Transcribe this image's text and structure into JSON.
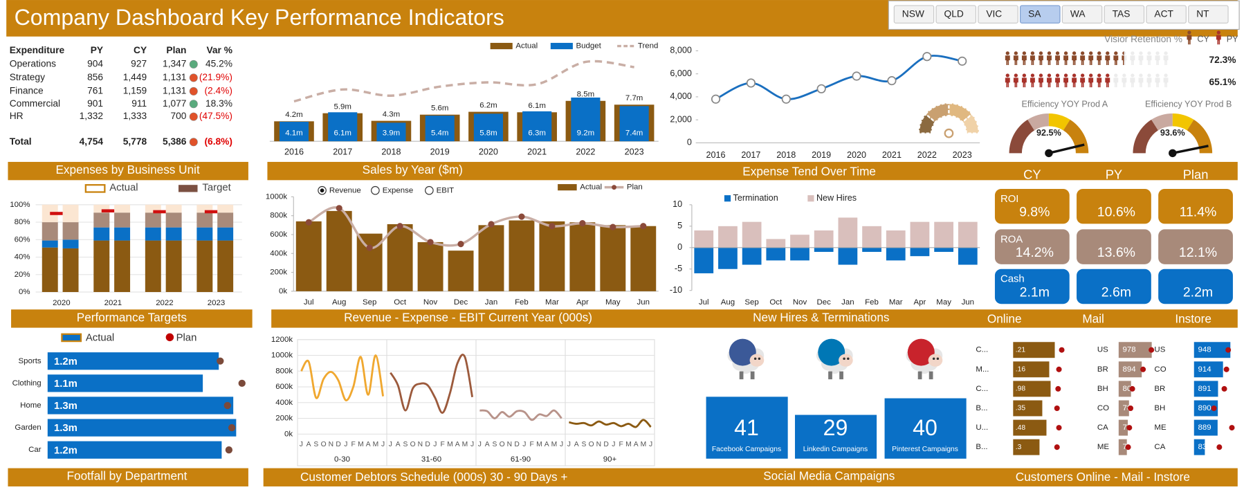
{
  "header": {
    "title": "Company Dashboard Key Performance Indicators",
    "filters": [
      "NSW",
      "QLD",
      "VIC",
      "SA",
      "WA",
      "TAS",
      "ACT",
      "NT"
    ],
    "selected_filter": 3
  },
  "expenditure": {
    "columns": [
      "Expenditure",
      "PY",
      "CY",
      "Plan",
      "Var %"
    ],
    "rows": [
      [
        "Operations",
        "904",
        "927",
        "1,347",
        "45.2%"
      ],
      [
        "Strategy",
        "856",
        "1,449",
        "1,131",
        "(21.9%)"
      ],
      [
        "Finance",
        "761",
        "1,159",
        "1,131",
        "(2.4%)"
      ],
      [
        "Commercial",
        "901",
        "911",
        "1,077",
        "18.3%"
      ],
      [
        "HR",
        "1,332",
        "1,333",
        "700",
        "(47.5%)"
      ],
      [
        "Total",
        "4,754",
        "5,778",
        "5,386",
        "(6.8%)"
      ]
    ],
    "status_colors": [
      "#5aaa7d",
      "#e0522a",
      "#e0522a",
      "#5aaa7d",
      "#e0522a",
      "#e0522a"
    ],
    "negative_color": "#e00000"
  },
  "section_titles": [
    "Expenses by Business Unit",
    "Sales by Year ($m)",
    "Expense Tend Over Time",
    "Performance Targets",
    "Revenue - Expense - EBIT Current Year (000s)",
    "New Hires & Terminations",
    "Footfall by Department",
    "Customer Debtors Schedule (000s)  30 - 90 Days +",
    "Social  Media Campaigns",
    "Customers Online - Mail - Instore"
  ],
  "retention": {
    "title": "Visior Retention %",
    "lim": [
      0,
      100
    ],
    "series": [
      {
        "name": "CY",
        "value": 72.3,
        "value_label": "72.3%",
        "color": "#8b4a2b"
      },
      {
        "name": "PY",
        "value": 65.1,
        "value_label": "65.1%",
        "color": "#a8322a"
      }
    ]
  },
  "gauges": [
    {
      "title": "Efficiency YOY Prod A",
      "value": 92.5,
      "value_label": "92.5%",
      "lim": [
        0,
        100
      ]
    },
    {
      "title": "Efficiency YOY Prod B",
      "value": 93.6,
      "value_label": "93.6%",
      "lim": [
        0,
        100
      ]
    }
  ],
  "kpi": {
    "columns": [
      "CY",
      "PY",
      "Plan"
    ],
    "rows": [
      {
        "label": "ROI",
        "values": [
          "9.8%",
          "10.6%",
          "11.4%"
        ],
        "color": "#c8820e"
      },
      {
        "label": "ROA",
        "values": [
          "14.2%",
          "13.6%",
          "12.1%"
        ],
        "color": "#a88a7a"
      },
      {
        "label": "Cash",
        "values": [
          "2.1m",
          "2.6m",
          "2.2m"
        ],
        "color": "#0a70c6"
      }
    ]
  },
  "chart_data": [
    {
      "type": "bar_combo",
      "categories": [
        "2016",
        "2017",
        "2018",
        "2019",
        "2020",
        "2021",
        "2022",
        "2023"
      ],
      "series": [
        {
          "name": "Actual",
          "style": "bar",
          "color": "#8b5a12",
          "values": [
            4.2,
            5.9,
            4.3,
            5.6,
            6.2,
            6.1,
            8.5,
            7.7
          ],
          "value_labels": [
            "4.2m",
            "5.9m",
            "4.3m",
            "5.6m",
            "6.2m",
            "6.1m",
            "8.5m",
            "7.7m"
          ]
        },
        {
          "name": "Budget",
          "style": "bar",
          "color": "#0a70c6",
          "values": [
            4.1,
            6.1,
            3.9,
            5.4,
            5.8,
            6.3,
            9.2,
            7.4
          ],
          "value_labels": [
            "4.1m",
            "6.1m",
            "3.9m",
            "5.4m",
            "5.8m",
            "6.3m",
            "9.2m",
            "7.4m"
          ]
        },
        {
          "name": "Trend",
          "style": "line",
          "color": "#c9aea5",
          "values": [
            8.4,
            10.9,
            9.6,
            11.5,
            12.4,
            12.0,
            16.7,
            15.6
          ]
        }
      ]
    },
    {
      "type": "line",
      "categories": [
        "2016",
        "2017",
        "2018",
        "2019",
        "2020",
        "2021",
        "2022",
        "2023"
      ],
      "values": [
        3800,
        5200,
        3800,
        4700,
        5800,
        5400,
        7500,
        7100
      ],
      "color": "#1a6fbf",
      "ylim": [
        0,
        8000
      ],
      "yticks": [
        0,
        {
          "value": 2000,
          "label": "2,000"
        },
        {
          "value": 4000,
          "label": "4,000"
        },
        {
          "value": 6000,
          "label": "6,000"
        },
        {
          "value": 8000,
          "label": "8,000"
        }
      ]
    },
    {
      "type": "stacked_pct",
      "categories": [
        "2020",
        "2021",
        "2022",
        "2023"
      ],
      "series": [
        {
          "name": "Actual",
          "color": "#ffffff",
          "values": [
            [
              51,
              8,
              21,
              20
            ],
            [
              59,
              15,
              17,
              9
            ],
            [
              59,
              15,
              17,
              9
            ],
            [
              59,
              15,
              17,
              9
            ]
          ]
        },
        {
          "name": "Target",
          "color": "#7b5042",
          "values": [
            [
              50,
              10,
              20,
              20
            ],
            [
              59,
              15,
              17,
              9
            ],
            [
              59,
              15,
              17,
              9
            ],
            [
              59,
              15,
              17,
              9
            ]
          ]
        }
      ],
      "segment_colors": [
        "#8b5a12",
        "#0a70c6",
        "#a88a7a",
        "#fbe6d2"
      ],
      "markers": [
        90,
        93,
        92,
        92
      ],
      "marker_color": "#d01010",
      "ylim": [
        0,
        100
      ],
      "yticks": [
        {
          "value": 0,
          "label": "0%"
        },
        {
          "value": 20,
          "label": "20%"
        },
        {
          "value": 40,
          "label": "40%"
        },
        {
          "value": 60,
          "label": "60%"
        },
        {
          "value": 80,
          "label": "80%"
        },
        {
          "value": 100,
          "label": "100%"
        }
      ]
    },
    {
      "type": "bar_line",
      "options": [
        "Revenue",
        "Expense",
        "EBIT"
      ],
      "selected_option": 0,
      "categories": [
        "Jul",
        "Aug",
        "Sep",
        "Oct",
        "Nov",
        "Dec",
        "Jan",
        "Feb",
        "Mar",
        "Apr",
        "May",
        "Jun"
      ],
      "series": [
        {
          "name": "Actual",
          "style": "bar",
          "color": "#8b5a12",
          "values": [
            740000,
            850000,
            610000,
            710000,
            520000,
            430000,
            700000,
            750000,
            740000,
            730000,
            700000,
            690000
          ]
        },
        {
          "name": "Plan",
          "style": "line",
          "color": "#c9aea5",
          "marker_color": "#8b4a3a",
          "values": [
            730000,
            880000,
            460000,
            690000,
            520000,
            500000,
            710000,
            790000,
            690000,
            720000,
            680000,
            690000
          ]
        }
      ],
      "ylim": [
        0,
        1000000
      ],
      "yticks": [
        {
          "value": 0,
          "label": "0k"
        },
        {
          "value": 200000,
          "label": "200k"
        },
        {
          "value": 400000,
          "label": "400k"
        },
        {
          "value": 600000,
          "label": "600k"
        },
        {
          "value": 800000,
          "label": "800k"
        },
        {
          "value": 1000000,
          "label": "1000k"
        }
      ]
    },
    {
      "type": "diverging_bar",
      "categories": [
        "Jul",
        "Aug",
        "Sep",
        "Oct",
        "Nov",
        "Dec",
        "Jan",
        "Feb",
        "Mar",
        "Apr",
        "May",
        "Jun"
      ],
      "series": [
        {
          "name": "Termination",
          "color": "#0a70c6",
          "values": [
            -6,
            -5,
            -4,
            -3,
            -3,
            -1,
            -4,
            -1,
            -3,
            -2,
            -1,
            -4
          ]
        },
        {
          "name": "New Hires",
          "color": "#d9bfbc",
          "values": [
            4,
            5,
            6,
            2,
            3,
            4,
            7,
            5,
            4,
            6,
            6,
            6
          ]
        }
      ],
      "ylim": [
        -10,
        10
      ],
      "yticks": [
        -10,
        -5,
        0,
        5,
        10
      ]
    },
    {
      "type": "hbar",
      "categories": [
        "Sports",
        "Clothing",
        "Home",
        "Garden",
        "Car"
      ],
      "series": [
        {
          "name": "Actual",
          "color": "#0a70c6",
          "values": [
            1.18,
            1.07,
            1.28,
            1.3,
            1.2
          ],
          "value_labels": [
            "1.2m",
            "1.1m",
            "1.3m",
            "1.3m",
            "1.2m"
          ]
        },
        {
          "name": "Plan",
          "color": "#7b4a3a",
          "legend_color": "#c00000",
          "values": [
            1.19,
            1.34,
            1.24,
            1.27,
            1.25
          ]
        }
      ]
    },
    {
      "type": "small_multiples",
      "months": [
        "J",
        "A",
        "S",
        "O",
        "N",
        "D",
        "J",
        "F",
        "M",
        "A",
        "M",
        "J"
      ],
      "panels": [
        {
          "name": "0-30",
          "color": "#f0a830",
          "values": [
            800000,
            920000,
            460000,
            700000,
            790000,
            680000,
            430000,
            600000,
            980000,
            500000,
            1000000,
            480000
          ]
        },
        {
          "name": "31-60",
          "color": "#9c5a3c",
          "values": [
            780000,
            620000,
            300000,
            580000,
            640000,
            620000,
            460000,
            270000,
            520000,
            900000,
            980000,
            470000
          ]
        },
        {
          "name": "61-90",
          "color": "#b8938a",
          "values": [
            300000,
            290000,
            200000,
            280000,
            220000,
            290000,
            280000,
            180000,
            250000,
            230000,
            300000,
            200000
          ]
        },
        {
          "name": "90+",
          "color": "#8b5a12",
          "values": [
            150000,
            130000,
            140000,
            110000,
            160000,
            120000,
            140000,
            100000,
            130000,
            90000,
            180000,
            90000
          ]
        }
      ],
      "ylim": [
        0,
        1200000
      ],
      "yticks": [
        {
          "value": 0,
          "label": "0k"
        },
        {
          "value": 200000,
          "label": "200k"
        },
        {
          "value": 400000,
          "label": "400k"
        },
        {
          "value": 600000,
          "label": "600k"
        },
        {
          "value": 800000,
          "label": "800k"
        },
        {
          "value": 1000000,
          "label": "1000k"
        },
        {
          "value": 1200000,
          "label": "1200k"
        }
      ]
    },
    {
      "type": "campaign_tiles",
      "categories": [
        "Facebook Campaigns",
        "Linkedin Campaigns",
        "Pinterest  Campaigns"
      ],
      "values": [
        41,
        29,
        40
      ],
      "color": "#0a70c6",
      "icon_colors": [
        "#3b5998",
        "#0077b5",
        "#c8232c"
      ]
    },
    {
      "type": "hbar_lists",
      "panels": [
        {
          "name": "Online",
          "categories": [
            "C...",
            "M...",
            "C...",
            "B...",
            "U...",
            "B..."
          ],
          "values": [
            950,
            930,
            935,
            905,
            920,
            895
          ],
          "value_texts": [
            ".21",
            ".16",
            ".98",
            ".35",
            ".48",
            ".3"
          ],
          "targets": [
            975,
            965,
            962,
            958,
            965,
            958
          ],
          "xlim": [
            800,
            1000
          ],
          "color": "#8b5a12",
          "label_color": "#ffffff"
        },
        {
          "name": "Mail",
          "categories": [
            "US",
            "BR",
            "BH",
            "CO",
            "CA",
            "ME"
          ],
          "values": [
            978,
            894,
            804,
            787,
            777,
            769
          ],
          "targets": [
            975,
            905,
            815,
            800,
            790,
            780
          ],
          "xlim": [
            700,
            1000
          ],
          "color": "#a88a7a",
          "label_color": "#ffffff"
        },
        {
          "name": "Instore",
          "categories": [
            "US",
            "CO",
            "BR",
            "BH",
            "ME",
            "CA"
          ],
          "values": [
            948,
            914,
            891,
            890,
            889,
            830
          ],
          "targets": [
            938,
            930,
            920,
            872,
            955,
            897
          ],
          "xlim": [
            780,
            1000
          ],
          "color": "#0a70c6",
          "label_color": "#ffffff"
        }
      ],
      "target_color": "#b01010"
    }
  ]
}
